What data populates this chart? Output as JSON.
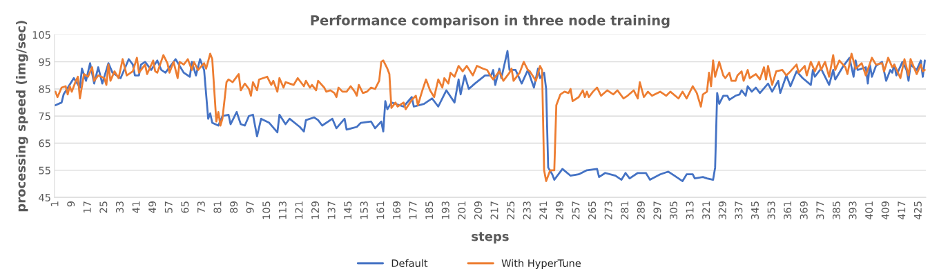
{
  "chart_data": {
    "type": "line",
    "title": "Performance comparison in three node training",
    "xlabel": "steps",
    "ylabel": "processing speed (img/sec)",
    "xlim": [
      0.5,
      428.5
    ],
    "ylim": [
      45,
      105
    ],
    "yticks": [
      45,
      55,
      65,
      75,
      85,
      95,
      105
    ],
    "xticks": [
      1,
      9,
      17,
      25,
      33,
      41,
      49,
      57,
      65,
      73,
      81,
      89,
      97,
      105,
      113,
      121,
      129,
      137,
      145,
      153,
      161,
      169,
      177,
      185,
      193,
      201,
      209,
      217,
      225,
      233,
      241,
      249,
      257,
      265,
      273,
      281,
      289,
      297,
      305,
      313,
      321,
      329,
      337,
      345,
      353,
      361,
      369,
      377,
      385,
      393,
      401,
      409,
      417,
      425
    ],
    "grid": "y",
    "legend": "bottom",
    "marker": "none",
    "line_style": "solid",
    "series": [
      {
        "name": "Default",
        "color": "#4472c4",
        "x": [
          1,
          4,
          5,
          10,
          13,
          14,
          16,
          18,
          20,
          22,
          24,
          27,
          29,
          33,
          37,
          39,
          40,
          42,
          43,
          45,
          48,
          51,
          53,
          55,
          60,
          64,
          67,
          68,
          70,
          72,
          74,
          76,
          77,
          78,
          81,
          83,
          86,
          87,
          90,
          92,
          94,
          96,
          98,
          100,
          102,
          106,
          110,
          111,
          114,
          116,
          121,
          123,
          124,
          128,
          130,
          132,
          137,
          139,
          143,
          144,
          149,
          151,
          156,
          158,
          161,
          162,
          163,
          164,
          166,
          172,
          176,
          177,
          182,
          186,
          189,
          193,
          197,
          199,
          200,
          202,
          204,
          207,
          212,
          215,
          216,
          217,
          219,
          220,
          223,
          224,
          227,
          230,
          233,
          236,
          238,
          239,
          241,
          242,
          243,
          245,
          246,
          249,
          250,
          254,
          258,
          262,
          267,
          268,
          271,
          276,
          279,
          281,
          283,
          287,
          291,
          293,
          298,
          302,
          305,
          309,
          311,
          314,
          315,
          319,
          321,
          324,
          325,
          326,
          327,
          329,
          331,
          332,
          335,
          337,
          338,
          340,
          341,
          343,
          345,
          347,
          351,
          353,
          356,
          357,
          360,
          362,
          365,
          368,
          372,
          373,
          374,
          377,
          381,
          383,
          384,
          388,
          391,
          393,
          394,
          395,
          399,
          400,
          401,
          402,
          404,
          407,
          409,
          411,
          412,
          413,
          414,
          417,
          419,
          420,
          421,
          424,
          426,
          427,
          428
        ],
        "values": [
          79,
          80,
          83,
          89,
          85.5,
          92.5,
          88,
          94.5,
          87,
          93,
          87,
          94.5,
          91,
          89,
          96,
          94,
          90,
          90,
          94,
          95,
          92,
          95.5,
          92,
          91,
          96,
          91,
          89.5,
          95,
          90,
          96,
          92,
          74,
          76,
          72.5,
          71.5,
          75,
          75.5,
          72,
          76.5,
          72,
          71.5,
          75,
          75.5,
          67.5,
          74,
          72.5,
          69,
          75.5,
          72,
          74,
          71,
          69.3,
          73.5,
          74.5,
          73.5,
          71.5,
          74,
          70.5,
          74,
          70,
          71,
          72.5,
          73,
          70.5,
          73,
          69.3,
          80.5,
          77.5,
          80,
          78.5,
          82,
          78.5,
          79.5,
          81.5,
          78.5,
          84.5,
          80,
          88.5,
          83,
          90,
          85,
          87,
          90,
          90,
          92,
          86.5,
          92.5,
          89,
          99,
          92,
          92,
          87,
          92,
          85.5,
          92.5,
          89,
          91,
          85,
          56,
          53.5,
          51.5,
          54.5,
          55.5,
          53,
          53.5,
          55,
          55.5,
          52.5,
          54,
          53,
          51.5,
          54,
          52,
          54,
          54,
          51.5,
          53.5,
          54.5,
          53,
          51,
          53.5,
          53.5,
          52,
          52.5,
          52,
          51.5,
          56,
          83.5,
          79.5,
          82.5,
          82.5,
          81,
          82.5,
          83,
          84.5,
          82.5,
          86,
          84,
          85.5,
          83.5,
          87,
          84,
          88,
          83.5,
          90,
          86,
          91.5,
          89,
          86.5,
          92,
          89.5,
          92.5,
          86.5,
          92,
          88.5,
          93.5,
          96.5,
          89.5,
          95.5,
          92,
          93,
          87,
          94,
          89.5,
          93.5,
          95,
          88,
          92,
          91,
          94,
          90,
          95,
          92,
          88,
          94,
          92,
          95.5,
          89.5,
          95.5
        ]
      },
      {
        "name": "With HyperTune",
        "color": "#ed7d31",
        "x": [
          1,
          2,
          4,
          6,
          7,
          8,
          9,
          11,
          12,
          13,
          15,
          17,
          19,
          20,
          22,
          25,
          26,
          27,
          28,
          30,
          32,
          34,
          36,
          39,
          41,
          42,
          45,
          46,
          49,
          50,
          51,
          54,
          56,
          57,
          59,
          61,
          62,
          64,
          66,
          68,
          69,
          71,
          74,
          75,
          77,
          78,
          80,
          81,
          82,
          83,
          85,
          86,
          88,
          91,
          92,
          94,
          96,
          97,
          98,
          100,
          101,
          105,
          107,
          108,
          110,
          111,
          113,
          114,
          118,
          120,
          123,
          124,
          126,
          127,
          129,
          130,
          133,
          134,
          136,
          138,
          139,
          140,
          142,
          144,
          146,
          148,
          149,
          150,
          152,
          154,
          156,
          158,
          160,
          161,
          162,
          164,
          165,
          166,
          168,
          169,
          172,
          173,
          176,
          178,
          179,
          181,
          183,
          185,
          187,
          189,
          191,
          192,
          194,
          195,
          197,
          199,
          201,
          203,
          206,
          208,
          211,
          213,
          215,
          216,
          219,
          221,
          224,
          225,
          226,
          229,
          230,
          231,
          233,
          234,
          237,
          239,
          240,
          241,
          242,
          244,
          246,
          247,
          249,
          251,
          253,
          254,
          255,
          258,
          260,
          261,
          262,
          263,
          265,
          267,
          269,
          272,
          275,
          277,
          280,
          282,
          285,
          287,
          288,
          290,
          292,
          294,
          298,
          301,
          303,
          307,
          309,
          311,
          314,
          316,
          318,
          319,
          321,
          322,
          323,
          324,
          325,
          327,
          329,
          330,
          332,
          333,
          335,
          336,
          338,
          339,
          341,
          342,
          345,
          347,
          349,
          350,
          351,
          353,
          355,
          358,
          360,
          362,
          365,
          366,
          369,
          370,
          372,
          374,
          376,
          377,
          379,
          381,
          383,
          384,
          386,
          389,
          390,
          392,
          394,
          397,
          399,
          402,
          404,
          407,
          408,
          410,
          412,
          413,
          416,
          418,
          420,
          421,
          424,
          426,
          427,
          428
        ],
        "values": [
          84,
          82,
          85.5,
          86,
          83,
          86,
          84,
          88,
          89.5,
          81.5,
          90.5,
          89.5,
          93,
          88,
          90,
          89,
          86.5,
          94,
          88,
          91.5,
          89,
          96,
          90,
          91.5,
          96.5,
          91,
          94,
          90.5,
          95.5,
          91.5,
          91,
          97.5,
          94.5,
          91,
          95,
          89,
          95,
          94,
          96,
          92,
          95,
          92,
          94.5,
          92.5,
          98,
          96,
          73,
          76.5,
          71.5,
          74,
          87.5,
          88.5,
          87.5,
          90.5,
          84.5,
          87,
          85,
          82.5,
          87.5,
          84.5,
          88.5,
          89.5,
          86.5,
          88,
          84,
          89,
          85.5,
          87.5,
          86.5,
          89,
          86,
          88,
          85.5,
          86.5,
          84.5,
          88,
          85.5,
          84,
          84.5,
          83.5,
          82,
          85.5,
          84,
          84,
          86,
          84,
          82.5,
          86.5,
          83.5,
          84,
          85.5,
          85,
          88,
          95,
          95.5,
          92.5,
          90.5,
          78,
          80,
          78.5,
          80,
          77.5,
          81,
          82.5,
          79,
          84,
          88.5,
          84.5,
          82,
          88.5,
          85.5,
          89,
          87,
          91,
          89.5,
          93.5,
          91.5,
          93.5,
          90,
          93.5,
          92.5,
          92,
          89.5,
          88.5,
          91.5,
          88,
          91,
          92.5,
          88,
          91,
          93,
          95,
          92,
          91.5,
          88,
          93.5,
          92,
          55,
          51,
          55,
          55,
          79,
          83,
          84,
          83.5,
          85,
          80.5,
          82,
          84.5,
          82,
          84,
          82,
          84,
          85.5,
          82.5,
          84.5,
          83,
          84.5,
          81.5,
          82.5,
          84.5,
          81.5,
          87.5,
          82,
          84,
          82.5,
          84,
          82.5,
          84,
          81.5,
          84,
          81.5,
          86,
          83.5,
          78.5,
          83,
          84,
          91,
          86,
          95.5,
          89.5,
          95,
          90,
          89,
          91,
          88,
          88,
          90,
          91.5,
          88,
          92,
          89,
          90.5,
          88.5,
          93,
          88.5,
          93.5,
          86.5,
          91.5,
          92,
          90,
          91.5,
          94,
          91,
          93.5,
          90,
          95,
          91.5,
          95,
          92,
          95,
          89.5,
          97.5,
          92,
          95.5,
          93,
          90.5,
          98,
          92.5,
          94.5,
          90,
          96.5,
          94,
          94.5,
          91.5,
          96.5,
          93,
          94,
          89,
          96,
          90,
          96,
          90.5,
          94,
          91.5,
          92
        ]
      }
    ]
  }
}
